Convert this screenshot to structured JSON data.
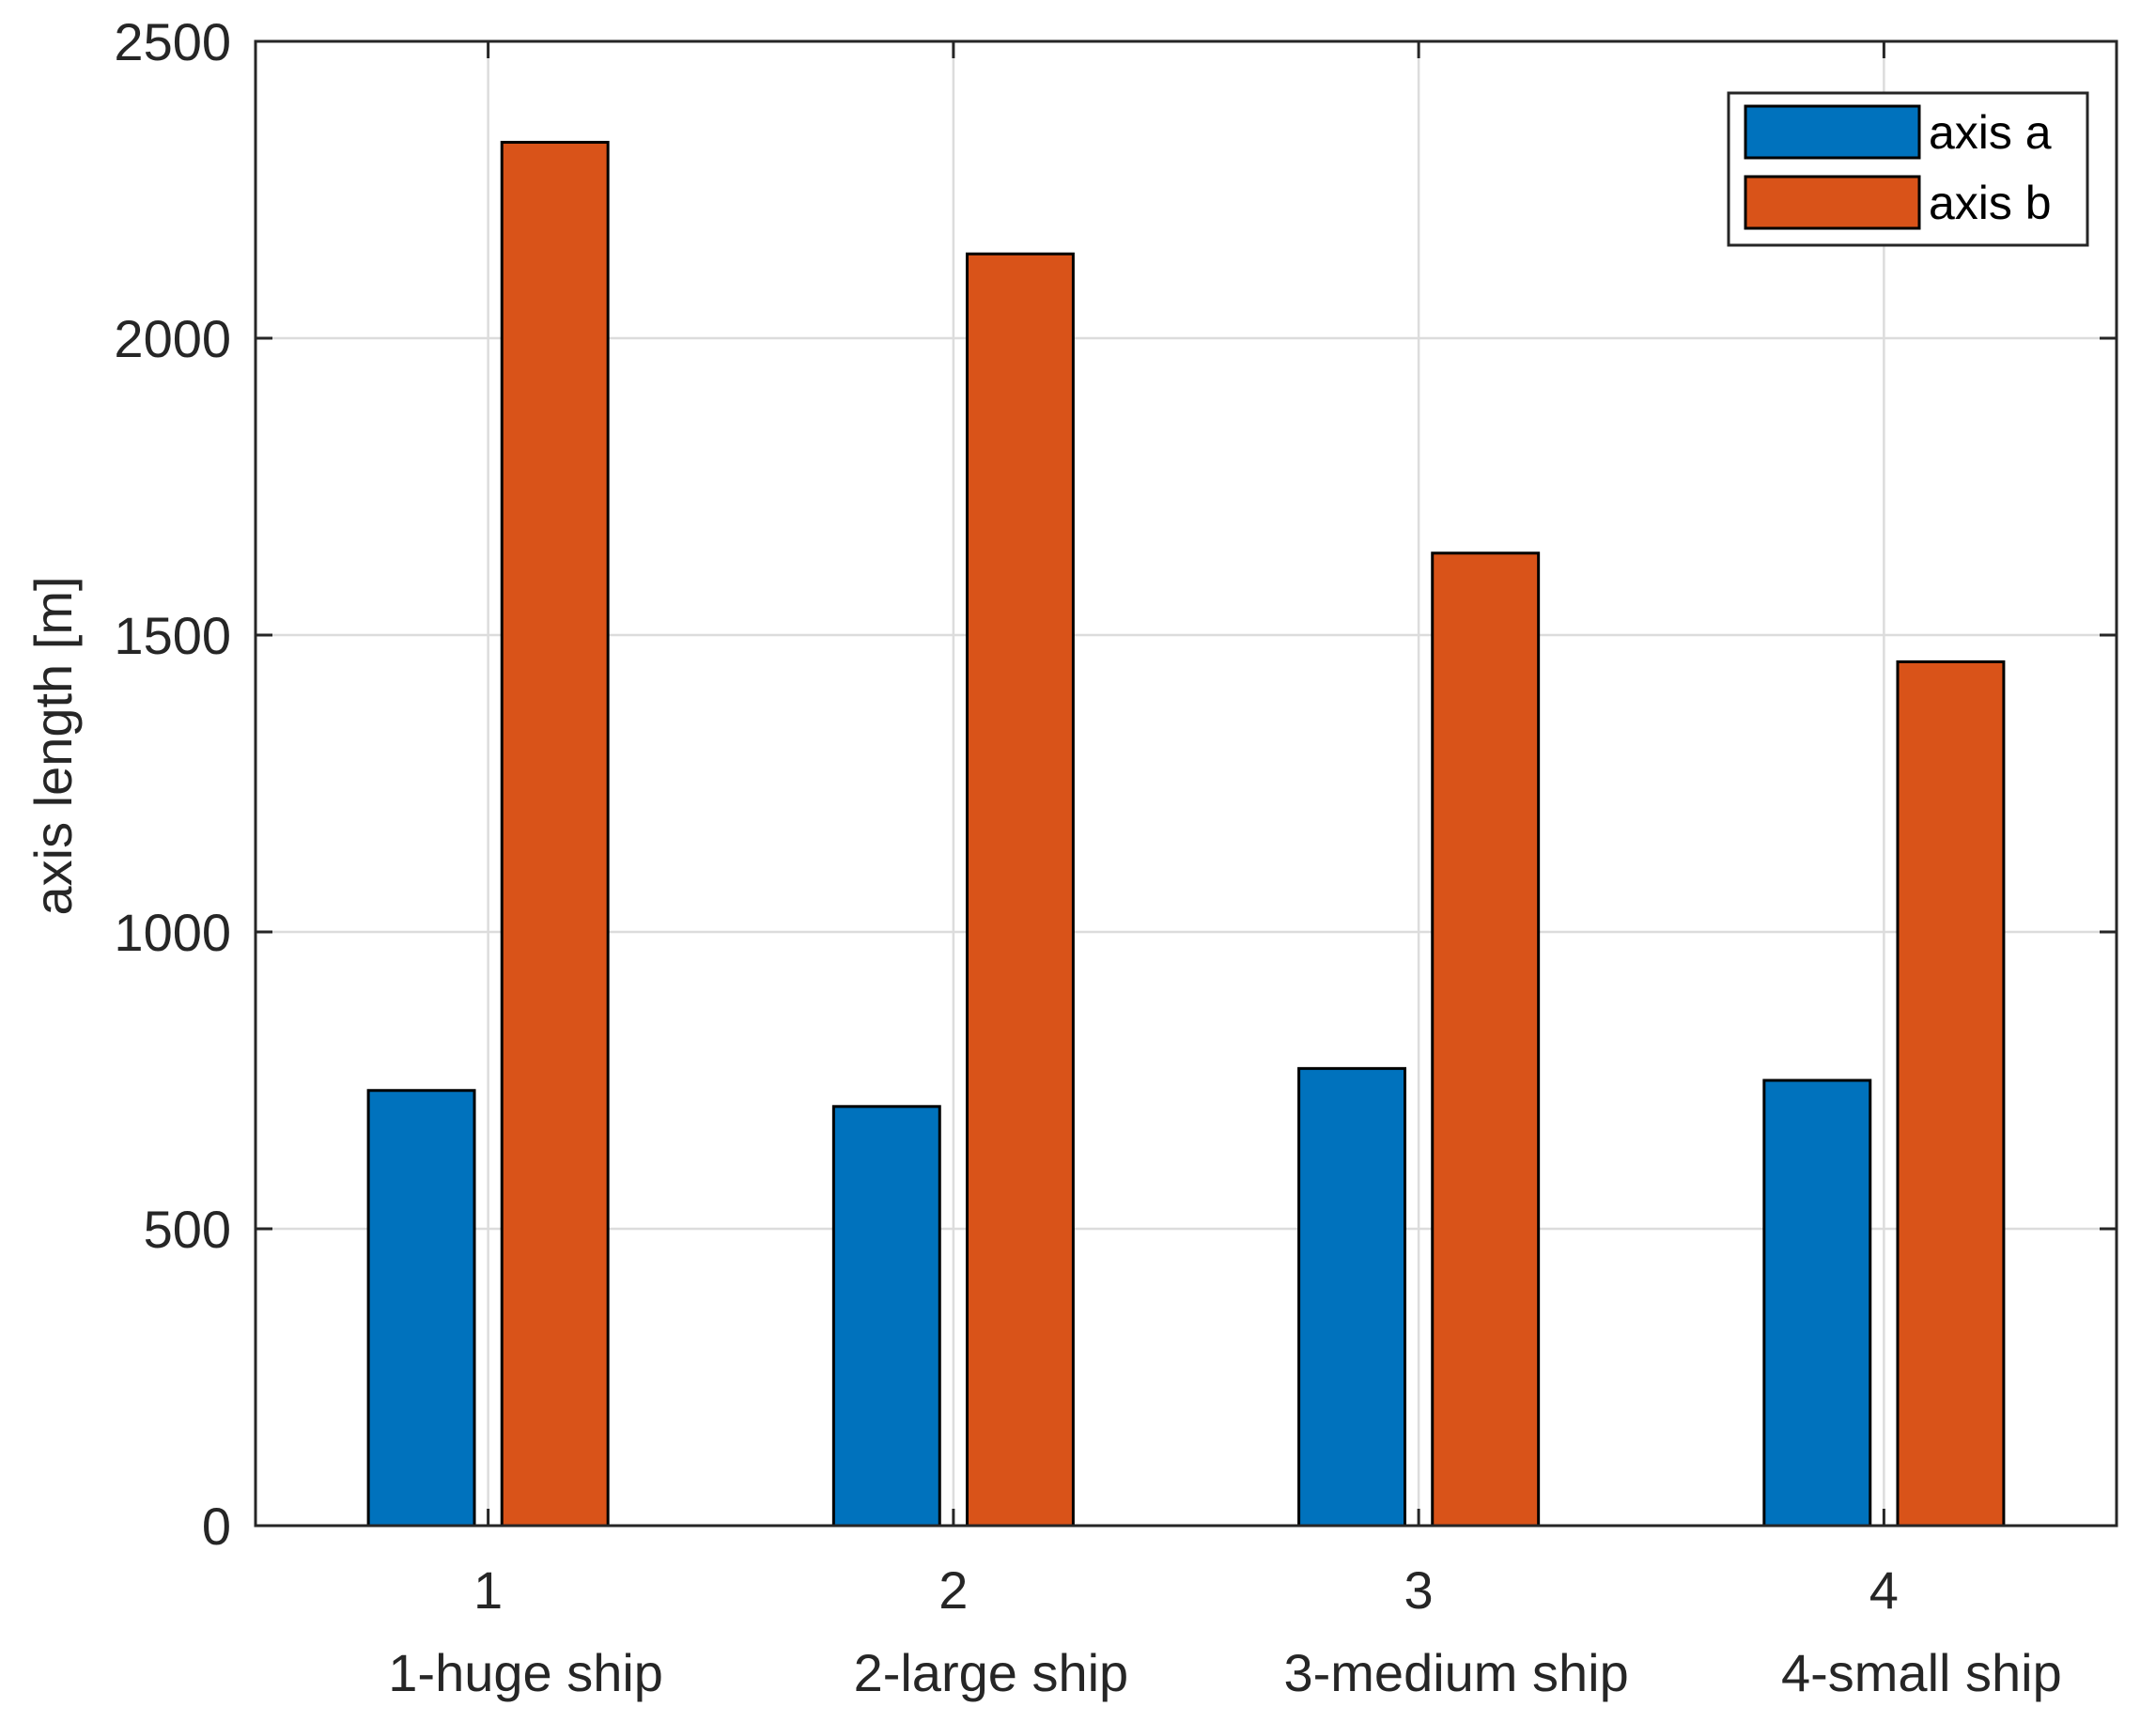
{
  "chart_data": {
    "type": "bar",
    "title": "",
    "xlabel": "",
    "ylabel": "axis length [m]",
    "ylim": [
      0,
      2500
    ],
    "yticks": [
      "0",
      "500",
      "1000",
      "1500",
      "2000",
      "2500"
    ],
    "ytick_values": [
      0,
      500,
      1000,
      1500,
      2000,
      2500
    ],
    "x": [
      "1",
      "2",
      "3",
      "4"
    ],
    "categories": [
      "1-huge ship",
      "2-large ship",
      "3-medium ship",
      "4-small ship"
    ],
    "grid": true,
    "legend_position": "top-right",
    "series": [
      {
        "name": "axis a",
        "color": "#0072BD",
        "values": [
          733,
          706,
          770,
          750
        ]
      },
      {
        "name": "axis b",
        "color": "#D95319",
        "values": [
          2330,
          2142,
          1638,
          1455
        ]
      }
    ]
  }
}
